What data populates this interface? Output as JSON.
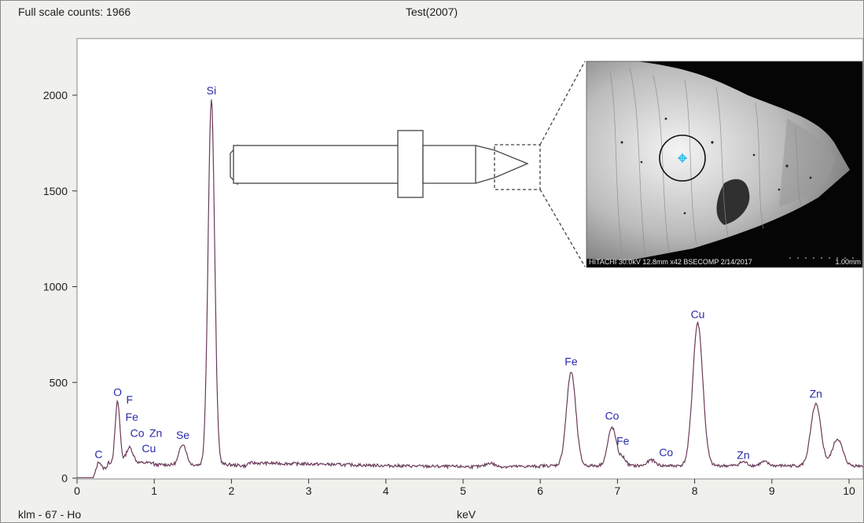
{
  "header": {
    "full_scale": "Full scale counts: 1966",
    "title": "Test(2007)"
  },
  "footer": {
    "left_label": "klm - 67 - Ho",
    "xlabel": "keV"
  },
  "inset": {
    "caption": "HITACHI 30.0kV 12.8mm x42 BSECOMP  2/14/2017",
    "scale": "1.00mm"
  },
  "colors": {
    "spectrum": "#6a3a5a",
    "peak_label": "#2a2aa8",
    "plot_bg": "#ffffff",
    "frame_bg": "#f0f0ec",
    "marker": "#2ab8f0"
  },
  "chart_data": {
    "type": "line",
    "title": "Test(2007)",
    "xlabel": "keV",
    "ylabel": "",
    "xlim": [
      0,
      10.2
    ],
    "ylim": [
      0,
      2300
    ],
    "x_ticks": [
      "0",
      "1",
      "2",
      "3",
      "4",
      "5",
      "6",
      "7",
      "8",
      "9",
      "10"
    ],
    "y_ticks": [
      "0",
      "500",
      "1000",
      "1500",
      "2000"
    ],
    "grid": false,
    "baseline": 60,
    "peaks": [
      {
        "keV": 0.28,
        "counts": 60,
        "width": 0.03
      },
      {
        "keV": 0.525,
        "counts": 320,
        "width": 0.03
      },
      {
        "keV": 0.68,
        "counts": 80,
        "width": 0.045
      },
      {
        "keV": 1.37,
        "counts": 110,
        "width": 0.045
      },
      {
        "keV": 1.74,
        "counts": 1906,
        "width": 0.042
      },
      {
        "keV": 5.35,
        "counts": 20,
        "width": 0.05
      },
      {
        "keV": 6.4,
        "counts": 490,
        "width": 0.06
      },
      {
        "keV": 6.93,
        "counts": 200,
        "width": 0.055
      },
      {
        "keV": 7.07,
        "counts": 40,
        "width": 0.04
      },
      {
        "keV": 7.44,
        "counts": 30,
        "width": 0.05
      },
      {
        "keV": 8.04,
        "counts": 745,
        "width": 0.065
      },
      {
        "keV": 8.63,
        "counts": 20,
        "width": 0.05
      },
      {
        "keV": 8.9,
        "counts": 20,
        "width": 0.05
      },
      {
        "keV": 9.57,
        "counts": 320,
        "width": 0.065
      },
      {
        "keV": 9.85,
        "counts": 140,
        "width": 0.065
      }
    ],
    "peak_labels": [
      {
        "label": "Si",
        "keV": 1.74,
        "counts": 2005
      },
      {
        "label": "O",
        "keV": 0.525,
        "counts": 430
      },
      {
        "label": "F",
        "keV": 0.68,
        "counts": 390
      },
      {
        "label": "Fe",
        "keV": 0.71,
        "counts": 300
      },
      {
        "label": "Co",
        "keV": 0.78,
        "counts": 215
      },
      {
        "label": "Zn",
        "keV": 1.02,
        "counts": 215
      },
      {
        "label": "Cu",
        "keV": 0.93,
        "counts": 135
      },
      {
        "label": "C",
        "keV": 0.28,
        "counts": 105
      },
      {
        "label": "Se",
        "keV": 1.37,
        "counts": 205
      },
      {
        "label": "Fe",
        "keV": 6.4,
        "counts": 590
      },
      {
        "label": "Co",
        "keV": 6.93,
        "counts": 305
      },
      {
        "label": "Fe",
        "keV": 7.07,
        "counts": 175
      },
      {
        "label": "Co",
        "keV": 7.63,
        "counts": 115
      },
      {
        "label": "Cu",
        "keV": 8.04,
        "counts": 835
      },
      {
        "label": "Zn",
        "keV": 8.63,
        "counts": 100
      },
      {
        "label": "Zn",
        "keV": 9.57,
        "counts": 420
      }
    ]
  }
}
